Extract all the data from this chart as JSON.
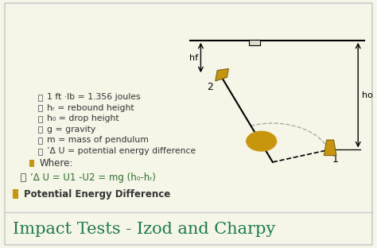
{
  "title": "Impact Tests - Izod and Charpy",
  "title_color": "#1a7a4a",
  "title_fontsize": 15,
  "bg_color": "#f5f5e8",
  "border_color": "#cccccc",
  "text_color": "#000000",
  "olive_color": "#c8960c",
  "bullet1_text": "Potential Energy Difference",
  "bullet2_text": "’Δ U = U1 -U2 = mg (h₀-hᵣ)",
  "bullet3_text": "Where:",
  "sub_bullets": [
    "’Δ U = potential energy difference",
    "m = mass of pendulum",
    "g = gravity",
    "h₀ = drop height",
    "hᵣ = rebound height",
    "1 ft ·lb = 1.356 joules"
  ]
}
